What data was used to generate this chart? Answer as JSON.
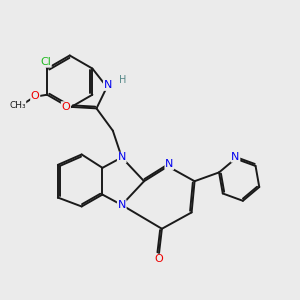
{
  "background_color": "#ebebeb",
  "bond_color": "#1a1a1a",
  "atom_colors": {
    "N": "#0000ee",
    "O": "#ee0000",
    "Cl": "#22bb22",
    "H": "#558888"
  },
  "lw": 1.4
}
